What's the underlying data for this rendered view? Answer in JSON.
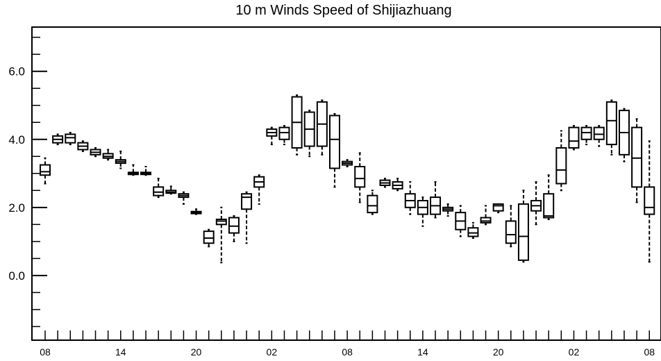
{
  "chart_data": {
    "type": "box",
    "title": "10 m Winds Speed of Shijiazhuang",
    "xlabel": "",
    "ylabel": "",
    "ylim": [
      -1.9,
      7.3
    ],
    "yticks": [
      {
        "value": 0.0,
        "label": "0.0"
      },
      {
        "value": 2.0,
        "label": "2.0"
      },
      {
        "value": 4.0,
        "label": "4.0"
      },
      {
        "value": 6.0,
        "label": "6.0"
      }
    ],
    "xlim": [
      0,
      48
    ],
    "xticks": [
      {
        "value": 0,
        "label": "08"
      },
      {
        "value": 6,
        "label": "14"
      },
      {
        "value": 12,
        "label": "20"
      },
      {
        "value": 18,
        "label": "02"
      },
      {
        "value": 24,
        "label": "08"
      },
      {
        "value": 30,
        "label": "14"
      },
      {
        "value": 36,
        "label": "20"
      },
      {
        "value": 42,
        "label": "02"
      },
      {
        "value": 48,
        "label": "08"
      }
    ],
    "grid": false,
    "boxes": [
      {
        "x": 0,
        "q1": 2.95,
        "median": 3.05,
        "q3": 3.25,
        "lo": 2.7,
        "hi": 3.45
      },
      {
        "x": 1,
        "q1": 3.9,
        "median": 4.0,
        "q3": 4.1,
        "lo": 3.85,
        "hi": 4.15
      },
      {
        "x": 2,
        "q1": 3.9,
        "median": 4.05,
        "q3": 4.15,
        "lo": 3.85,
        "hi": 4.2
      },
      {
        "x": 3,
        "q1": 3.7,
        "median": 3.8,
        "q3": 3.9,
        "lo": 3.65,
        "hi": 3.95
      },
      {
        "x": 4,
        "q1": 3.55,
        "median": 3.62,
        "q3": 3.7,
        "lo": 3.5,
        "hi": 3.75
      },
      {
        "x": 5,
        "q1": 3.45,
        "median": 3.5,
        "q3": 3.58,
        "lo": 3.4,
        "hi": 3.7
      },
      {
        "x": 6,
        "q1": 3.3,
        "median": 3.35,
        "q3": 3.4,
        "lo": 3.15,
        "hi": 3.65
      },
      {
        "x": 7,
        "q1": 2.97,
        "median": 3.0,
        "q3": 3.03,
        "lo": 2.95,
        "hi": 3.25
      },
      {
        "x": 8,
        "q1": 2.97,
        "median": 3.0,
        "q3": 3.03,
        "lo": 2.95,
        "hi": 3.2
      },
      {
        "x": 9,
        "q1": 2.35,
        "median": 2.45,
        "q3": 2.6,
        "lo": 2.3,
        "hi": 2.85
      },
      {
        "x": 10,
        "q1": 2.42,
        "median": 2.45,
        "q3": 2.5,
        "lo": 2.4,
        "hi": 2.62
      },
      {
        "x": 11,
        "q1": 2.3,
        "median": 2.35,
        "q3": 2.4,
        "lo": 2.1,
        "hi": 2.45
      },
      {
        "x": 12,
        "q1": 1.82,
        "median": 1.85,
        "q3": 1.88,
        "lo": 1.8,
        "hi": 1.95
      },
      {
        "x": 13,
        "q1": 0.95,
        "median": 1.1,
        "q3": 1.3,
        "lo": 0.85,
        "hi": 1.35
      },
      {
        "x": 14,
        "q1": 1.5,
        "median": 1.6,
        "q3": 1.65,
        "lo": 0.38,
        "hi": 2.0
      },
      {
        "x": 15,
        "q1": 1.25,
        "median": 1.45,
        "q3": 1.7,
        "lo": 1.0,
        "hi": 1.75
      },
      {
        "x": 16,
        "q1": 1.95,
        "median": 2.3,
        "q3": 2.4,
        "lo": 0.95,
        "hi": 2.45
      },
      {
        "x": 17,
        "q1": 2.6,
        "median": 2.75,
        "q3": 2.9,
        "lo": 2.1,
        "hi": 2.95
      },
      {
        "x": 18,
        "q1": 4.1,
        "median": 4.2,
        "q3": 4.3,
        "lo": 3.85,
        "hi": 4.35
      },
      {
        "x": 19,
        "q1": 4.0,
        "median": 4.2,
        "q3": 4.35,
        "lo": 3.85,
        "hi": 4.4
      },
      {
        "x": 20,
        "q1": 3.75,
        "median": 4.5,
        "q3": 5.25,
        "lo": 3.55,
        "hi": 5.3
      },
      {
        "x": 21,
        "q1": 3.8,
        "median": 4.3,
        "q3": 4.8,
        "lo": 3.5,
        "hi": 4.85
      },
      {
        "x": 22,
        "q1": 3.8,
        "median": 4.45,
        "q3": 5.1,
        "lo": 3.55,
        "hi": 5.15
      },
      {
        "x": 23,
        "q1": 3.15,
        "median": 4.0,
        "q3": 4.7,
        "lo": 2.6,
        "hi": 4.75
      },
      {
        "x": 24,
        "q1": 3.25,
        "median": 3.3,
        "q3": 3.35,
        "lo": 3.2,
        "hi": 3.4
      },
      {
        "x": 25,
        "q1": 2.6,
        "median": 2.85,
        "q3": 3.2,
        "lo": 2.15,
        "hi": 3.6
      },
      {
        "x": 26,
        "q1": 1.85,
        "median": 2.05,
        "q3": 2.35,
        "lo": 1.8,
        "hi": 2.5
      },
      {
        "x": 27,
        "q1": 2.65,
        "median": 2.72,
        "q3": 2.8,
        "lo": 2.6,
        "hi": 2.85
      },
      {
        "x": 28,
        "q1": 2.55,
        "median": 2.65,
        "q3": 2.75,
        "lo": 2.5,
        "hi": 2.85
      },
      {
        "x": 29,
        "q1": 2.0,
        "median": 2.2,
        "q3": 2.4,
        "lo": 1.8,
        "hi": 2.75
      },
      {
        "x": 30,
        "q1": 1.8,
        "median": 2.0,
        "q3": 2.2,
        "lo": 1.45,
        "hi": 2.3
      },
      {
        "x": 31,
        "q1": 1.8,
        "median": 2.05,
        "q3": 2.3,
        "lo": 1.7,
        "hi": 2.75
      },
      {
        "x": 32,
        "q1": 1.9,
        "median": 1.95,
        "q3": 2.0,
        "lo": 1.75,
        "hi": 2.1
      },
      {
        "x": 33,
        "q1": 1.35,
        "median": 1.6,
        "q3": 1.85,
        "lo": 1.15,
        "hi": 2.05
      },
      {
        "x": 34,
        "q1": 1.15,
        "median": 1.25,
        "q3": 1.4,
        "lo": 1.1,
        "hi": 1.55
      },
      {
        "x": 35,
        "q1": 1.55,
        "median": 1.6,
        "q3": 1.7,
        "lo": 1.5,
        "hi": 2.05
      },
      {
        "x": 36,
        "q1": 1.9,
        "median": 2.05,
        "q3": 2.1,
        "lo": 1.85,
        "hi": 2.1
      },
      {
        "x": 37,
        "q1": 0.95,
        "median": 1.2,
        "q3": 1.6,
        "lo": 0.85,
        "hi": 2.05
      },
      {
        "x": 38,
        "q1": 0.45,
        "median": 1.15,
        "q3": 2.1,
        "lo": 0.4,
        "hi": 2.5
      },
      {
        "x": 39,
        "q1": 1.9,
        "median": 2.05,
        "q3": 2.2,
        "lo": 1.5,
        "hi": 2.75
      },
      {
        "x": 40,
        "q1": 1.7,
        "median": 1.75,
        "q3": 2.4,
        "lo": 1.65,
        "hi": 2.95
      },
      {
        "x": 41,
        "q1": 2.7,
        "median": 3.1,
        "q3": 3.75,
        "lo": 2.5,
        "hi": 4.25
      },
      {
        "x": 42,
        "q1": 3.75,
        "median": 3.95,
        "q3": 4.35,
        "lo": 3.7,
        "hi": 4.4
      },
      {
        "x": 43,
        "q1": 4.0,
        "median": 4.2,
        "q3": 4.35,
        "lo": 3.85,
        "hi": 4.4
      },
      {
        "x": 44,
        "q1": 4.0,
        "median": 4.15,
        "q3": 4.35,
        "lo": 3.8,
        "hi": 4.4
      },
      {
        "x": 45,
        "q1": 3.85,
        "median": 4.55,
        "q3": 5.1,
        "lo": 3.55,
        "hi": 5.15
      },
      {
        "x": 46,
        "q1": 3.55,
        "median": 4.2,
        "q3": 4.85,
        "lo": 3.35,
        "hi": 4.9
      },
      {
        "x": 47,
        "q1": 2.6,
        "median": 3.45,
        "q3": 4.35,
        "lo": 2.15,
        "hi": 4.6
      },
      {
        "x": 48,
        "q1": 1.8,
        "median": 2.0,
        "q3": 2.6,
        "lo": 0.4,
        "hi": 3.95
      }
    ]
  }
}
